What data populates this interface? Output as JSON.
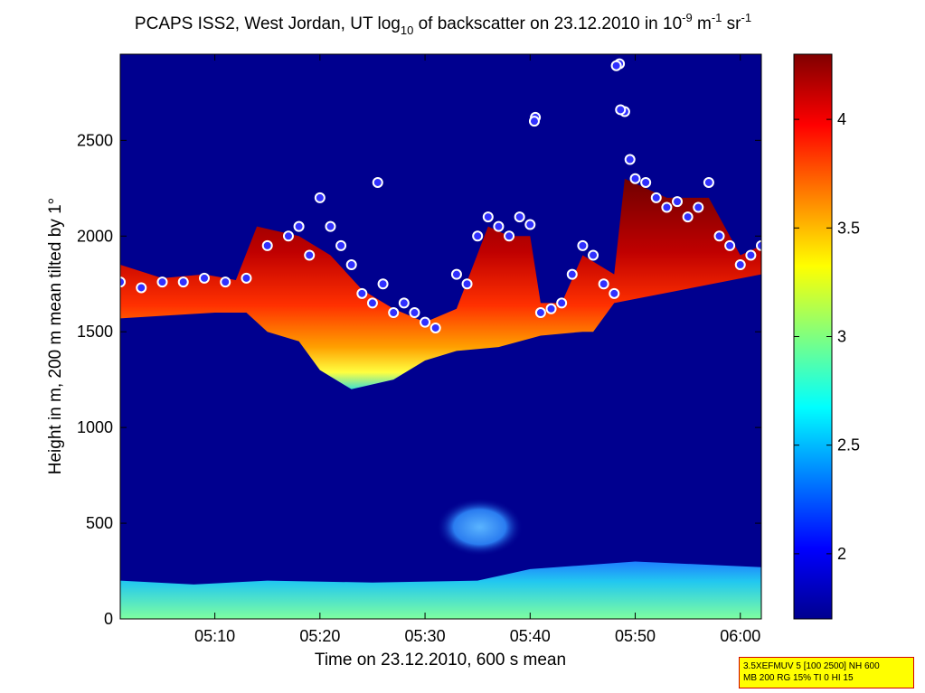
{
  "chart_data": {
    "type": "heatmap",
    "title": {
      "prefix": "PCAPS ISS2, West Jordan, UT log",
      "log_base": "10",
      "middle": " of backscatter on 23.12.2010 in 10",
      "exp1": "-9",
      "unit1": " m",
      "exp2": "-1",
      "unit2": " sr",
      "exp3": "-1"
    },
    "xlabel": "Time on 23.12.2010, 600 s mean",
    "ylabel": "Height in m, 200 m mean tilted by 1°",
    "x_ticks": [
      "05:10",
      "05:20",
      "05:30",
      "05:40",
      "05:50",
      "06:00"
    ],
    "x_tick_minutes": [
      10,
      20,
      30,
      40,
      50,
      60
    ],
    "xlim_minutes": [
      1,
      62
    ],
    "y_ticks": [
      0,
      500,
      1000,
      1500,
      2000,
      2500
    ],
    "ylim": [
      0,
      2950
    ],
    "colorbar": {
      "ticks": [
        2,
        2.5,
        3,
        3.5,
        4
      ],
      "tick_labels": [
        "2",
        "2.5",
        "3",
        "3.5",
        "4"
      ],
      "range": [
        1.7,
        4.3
      ],
      "colormap": "jet"
    },
    "background_color": "#00008f",
    "layers": {
      "surface_layer": {
        "top_m": [
          [
            1,
            200
          ],
          [
            8,
            180
          ],
          [
            15,
            200
          ],
          [
            25,
            190
          ],
          [
            35,
            200
          ],
          [
            40,
            260
          ],
          [
            50,
            300
          ],
          [
            62,
            270
          ]
        ],
        "value": 2.7
      },
      "plume": {
        "center_time": 35.2,
        "center_height": 480,
        "value": 2.2
      },
      "cloud_top": [
        [
          1,
          1850
        ],
        [
          5,
          1780
        ],
        [
          9,
          1800
        ],
        [
          12,
          1770
        ],
        [
          14,
          2050
        ],
        [
          18,
          2000
        ],
        [
          21,
          1900
        ],
        [
          24,
          1720
        ],
        [
          27,
          1620
        ],
        [
          30,
          1550
        ],
        [
          33,
          1620
        ],
        [
          36,
          2050
        ],
        [
          38,
          2000
        ],
        [
          40,
          2000
        ],
        [
          41,
          1650
        ],
        [
          43,
          1650
        ],
        [
          45,
          1900
        ],
        [
          48,
          1800
        ],
        [
          49,
          2300
        ],
        [
          53,
          2200
        ],
        [
          57,
          2200
        ],
        [
          60,
          1900
        ],
        [
          62,
          1950
        ]
      ],
      "cloud_base": [
        [
          1,
          1570
        ],
        [
          10,
          1600
        ],
        [
          13,
          1600
        ],
        [
          15,
          1500
        ],
        [
          18,
          1450
        ],
        [
          20,
          1300
        ],
        [
          23,
          1200
        ],
        [
          27,
          1250
        ],
        [
          30,
          1350
        ],
        [
          33,
          1400
        ],
        [
          37,
          1420
        ],
        [
          41,
          1480
        ],
        [
          45,
          1500
        ],
        [
          46,
          1500
        ]
      ]
    },
    "detected_layer_points": [
      [
        1,
        1760
      ],
      [
        3,
        1730
      ],
      [
        5,
        1760
      ],
      [
        7,
        1760
      ],
      [
        9,
        1780
      ],
      [
        11,
        1760
      ],
      [
        13,
        1780
      ],
      [
        15,
        1950
      ],
      [
        17,
        2000
      ],
      [
        18,
        2050
      ],
      [
        19,
        1900
      ],
      [
        20,
        2200
      ],
      [
        21,
        2050
      ],
      [
        22,
        1950
      ],
      [
        23,
        1850
      ],
      [
        24,
        1700
      ],
      [
        25,
        1650
      ],
      [
        26,
        1750
      ],
      [
        27,
        1600
      ],
      [
        28,
        1650
      ],
      [
        29,
        1600
      ],
      [
        30,
        1550
      ],
      [
        31,
        1520
      ],
      [
        33,
        1800
      ],
      [
        34,
        1750
      ],
      [
        35,
        2000
      ],
      [
        36,
        2100
      ],
      [
        37,
        2050
      ],
      [
        38,
        2000
      ],
      [
        39,
        2100
      ],
      [
        40,
        2060
      ],
      [
        41,
        1600
      ],
      [
        42,
        1620
      ],
      [
        43,
        1650
      ],
      [
        44,
        1800
      ],
      [
        45,
        1950
      ],
      [
        46,
        1900
      ],
      [
        47,
        1750
      ],
      [
        48,
        1700
      ],
      [
        48.5,
        2900
      ],
      [
        49,
        2650
      ],
      [
        49.5,
        2400
      ],
      [
        50,
        2300
      ],
      [
        51,
        2280
      ],
      [
        52,
        2200
      ],
      [
        53,
        2150
      ],
      [
        54,
        2180
      ],
      [
        55,
        2100
      ],
      [
        56,
        2150
      ],
      [
        57,
        2280
      ],
      [
        58,
        2000
      ],
      [
        59,
        1950
      ],
      [
        60,
        1850
      ],
      [
        61,
        1900
      ],
      [
        62,
        1950
      ]
    ],
    "detected_layer_highlights": [
      [
        40.5,
        2620
      ],
      [
        40.4,
        2600
      ],
      [
        48.2,
        2890
      ],
      [
        48.6,
        2660
      ],
      [
        25.5,
        2280
      ]
    ],
    "settings_text": [
      "3.5XEFMUV 5 [100 2500] NH 600",
      "MB 200 RG 15% TI 0 HI 15"
    ]
  }
}
